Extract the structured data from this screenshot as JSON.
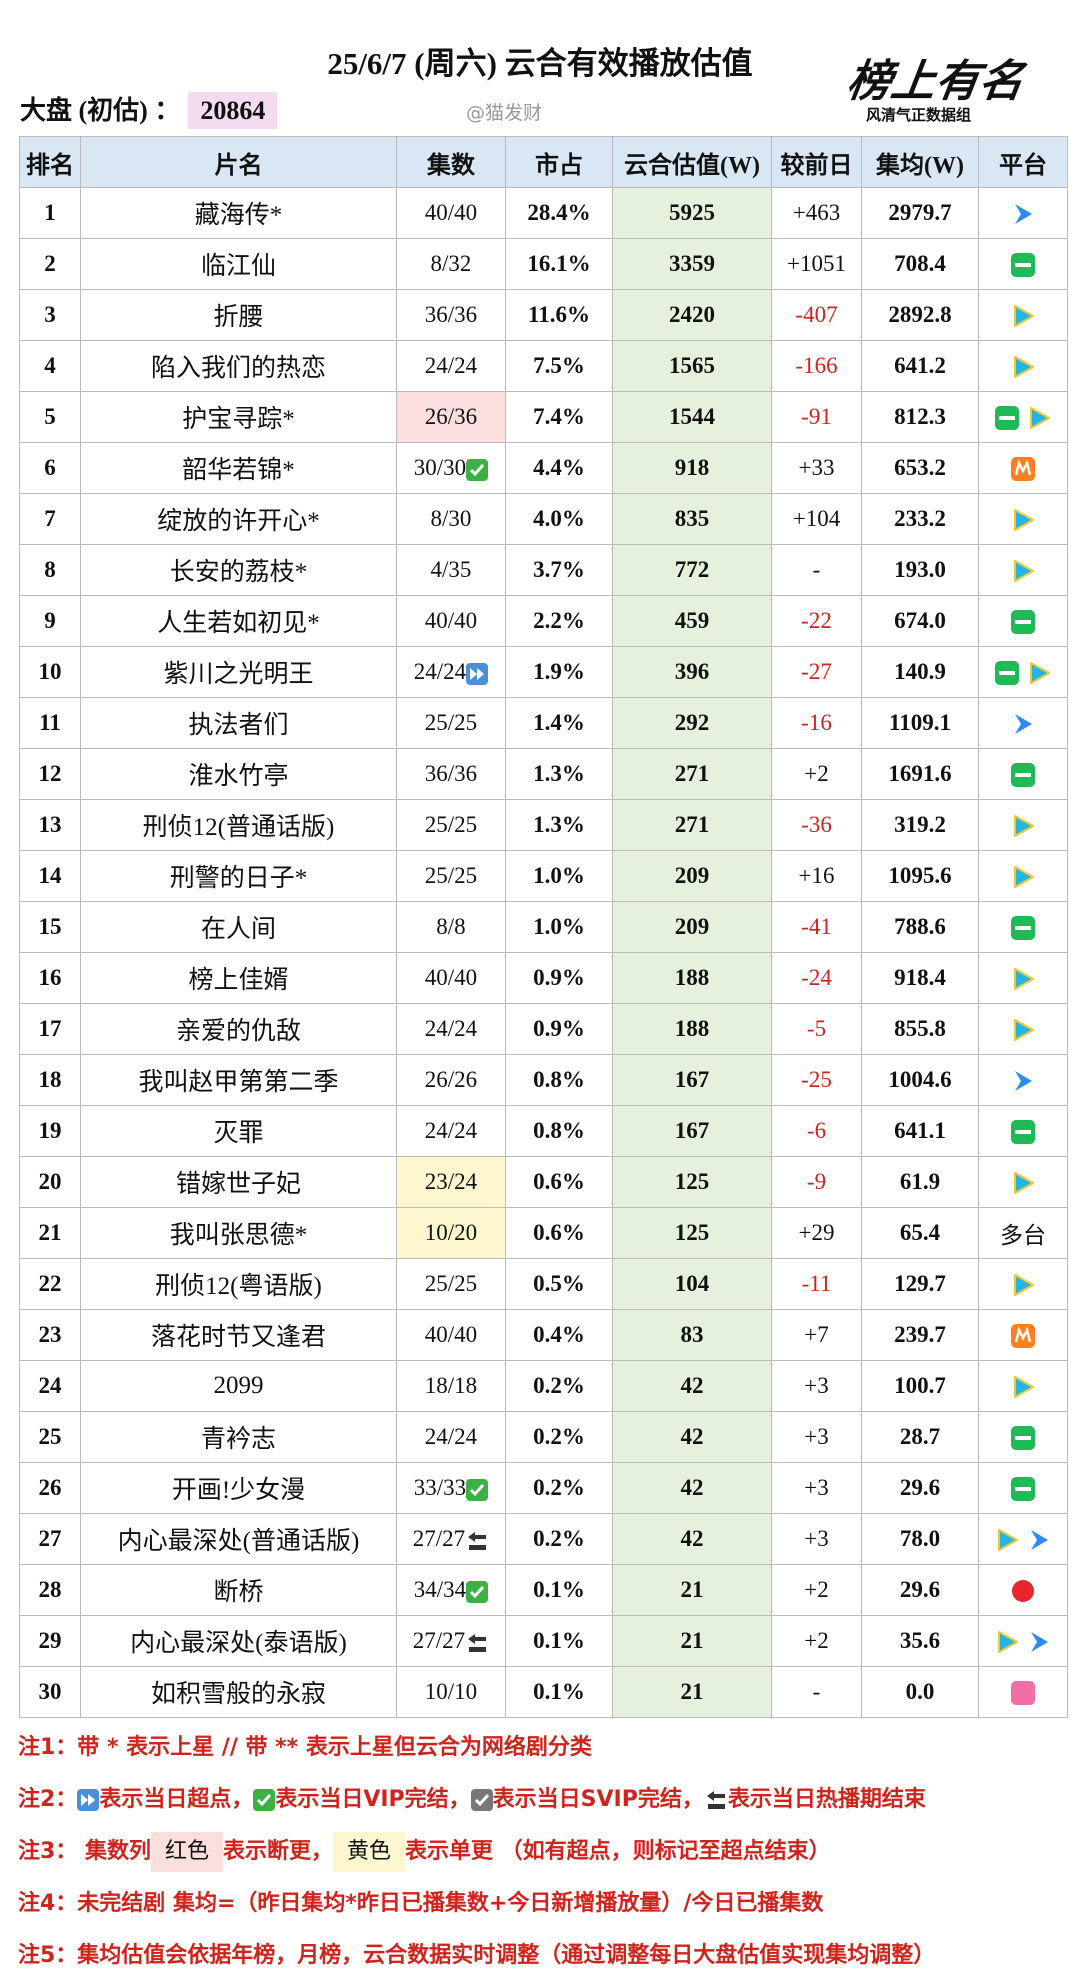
{
  "header": {
    "title": "25/6/7 (周六) 云合有效播放估值",
    "dapan_label": "大盘 (初估) ：",
    "dapan_value": "20864",
    "watermark": "@猫发财",
    "logo": "榜上有名",
    "logo_sub": "风清气正数据组"
  },
  "table": {
    "columns": [
      "排名",
      "片名",
      "集数",
      "市占",
      "云合估值(W)",
      "较前日",
      "集均(W)",
      "平台"
    ],
    "rows": [
      [
        "1",
        "藏海传*",
        "40/40",
        "28.4%",
        "5925",
        "+463",
        "2979.7"
      ],
      [
        "2",
        "临江仙",
        "8/32",
        "16.1%",
        "3359",
        "+1051",
        "708.4"
      ],
      [
        "3",
        "折腰",
        "36/36",
        "11.6%",
        "2420",
        "-407",
        "2892.8"
      ],
      [
        "4",
        "陷入我们的热恋",
        "24/24",
        "7.5%",
        "1565",
        "-166",
        "641.2"
      ],
      [
        "5",
        "护宝寻踪*",
        "26/36",
        "7.4%",
        "1544",
        "-91",
        "812.3"
      ],
      [
        "6",
        "韶华若锦*",
        "30/30",
        "4.4%",
        "918",
        "+33",
        "653.2"
      ],
      [
        "7",
        "绽放的许开心*",
        "8/30",
        "4.0%",
        "835",
        "+104",
        "233.2"
      ],
      [
        "8",
        "长安的荔枝*",
        "4/35",
        "3.7%",
        "772",
        "-",
        "193.0"
      ],
      [
        "9",
        "人生若如初见*",
        "40/40",
        "2.2%",
        "459",
        "-22",
        "674.0"
      ],
      [
        "10",
        "紫川之光明王",
        "24/24",
        "1.9%",
        "396",
        "-27",
        "140.9"
      ],
      [
        "11",
        "执法者们",
        "25/25",
        "1.4%",
        "292",
        "-16",
        "1109.1"
      ],
      [
        "12",
        "淮水竹亭",
        "36/36",
        "1.3%",
        "271",
        "+2",
        "1691.6"
      ],
      [
        "13",
        "刑侦12(普通话版)",
        "25/25",
        "1.3%",
        "271",
        "-36",
        "319.2"
      ],
      [
        "14",
        "刑警的日子*",
        "25/25",
        "1.0%",
        "209",
        "+16",
        "1095.6"
      ],
      [
        "15",
        "在人间",
        "8/8",
        "1.0%",
        "209",
        "-41",
        "788.6"
      ],
      [
        "16",
        "榜上佳婿",
        "40/40",
        "0.9%",
        "188",
        "-24",
        "918.4"
      ],
      [
        "17",
        "亲爱的仇敌",
        "24/24",
        "0.9%",
        "188",
        "-5",
        "855.8"
      ],
      [
        "18",
        "我叫赵甲第第二季",
        "26/26",
        "0.8%",
        "167",
        "-25",
        "1004.6"
      ],
      [
        "19",
        "灭罪",
        "24/24",
        "0.8%",
        "167",
        "-6",
        "641.1"
      ],
      [
        "20",
        "错嫁世子妃",
        "23/24",
        "0.6%",
        "125",
        "-9",
        "61.9"
      ],
      [
        "21",
        "我叫张思德*",
        "10/20",
        "0.6%",
        "125",
        "+29",
        "65.4",
        "多台"
      ],
      [
        "22",
        "刑侦12(粤语版)",
        "25/25",
        "0.5%",
        "104",
        "-11",
        "129.7"
      ],
      [
        "23",
        "落花时节又逢君",
        "40/40",
        "0.4%",
        "83",
        "+7",
        "239.7"
      ],
      [
        "24",
        "2099",
        "18/18",
        "0.2%",
        "42",
        "+3",
        "100.7"
      ],
      [
        "25",
        "青衿志",
        "24/24",
        "0.2%",
        "42",
        "+3",
        "28.7"
      ],
      [
        "26",
        "开画!少女漫",
        "33/33",
        "0.2%",
        "42",
        "+3",
        "29.6"
      ],
      [
        "27",
        "内心最深处(普通话版)",
        "27/27",
        "0.2%",
        "42",
        "+3",
        "78.0"
      ],
      [
        "28",
        "断桥",
        "34/34",
        "0.1%",
        "21",
        "+2",
        "29.6"
      ],
      [
        "29",
        "内心最深处(泰语版)",
        "27/27",
        "0.1%",
        "21",
        "+2",
        "35.6"
      ],
      [
        "30",
        "如积雪般的永寂",
        "10/10",
        "0.1%",
        "21",
        "-",
        "0.0"
      ]
    ]
  },
  "notes": [
    [
      "注1：带 * 表示上星 // 带 ** 表示上星但云合为网络剧分类"
    ],
    [
      "注2：",
      "表示当日超点，",
      "表示当日VIP完结，",
      "表示当日SVIP完结，",
      "表示当日热播期结束"
    ],
    [
      "注3：  集数列",
      "红色",
      "表示断更，",
      "黄色",
      "表示单更 （如有超点，则标记至超点结束）"
    ],
    [
      "注4：未完结剧 集均=（昨日集均*昨日已播集数+今日新增播放量）/今日已播集数"
    ],
    [
      "注5：集均估值会依据年榜，月榜，云合数据实时调整（通过调整每日大盘估值实现集均调整）"
    ]
  ]
}
